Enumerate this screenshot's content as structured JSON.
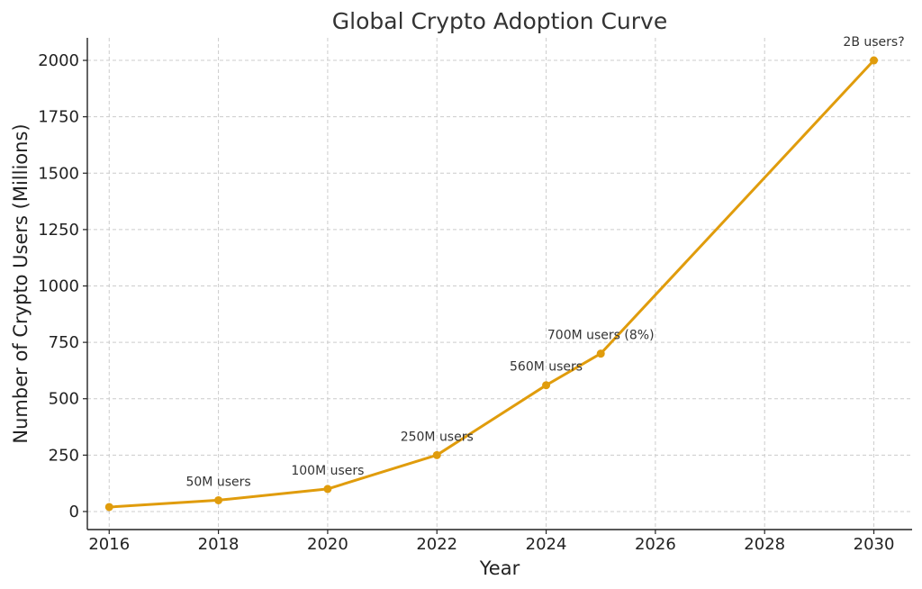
{
  "chart_data": {
    "type": "line",
    "title": "Global Crypto Adoption Curve",
    "xlabel": "Year",
    "ylabel": "Number of Crypto Users (Millions)",
    "xlim": [
      2015.6,
      2030.7
    ],
    "ylim": [
      -80,
      2100
    ],
    "xticks": [
      2016,
      2018,
      2020,
      2022,
      2024,
      2026,
      2028,
      2030
    ],
    "yticks": [
      0,
      250,
      500,
      750,
      1000,
      1250,
      1500,
      1750,
      2000
    ],
    "grid": true,
    "series": [
      {
        "color": "#e09c0c",
        "x": [
          2016,
          2018,
          2020,
          2022,
          2024,
          2025,
          2030
        ],
        "y": [
          20,
          50,
          100,
          250,
          560,
          700,
          2000
        ]
      }
    ],
    "annotations": [
      {
        "text": "50M users",
        "x": 2018,
        "y": 50
      },
      {
        "text": "100M users",
        "x": 2020,
        "y": 100
      },
      {
        "text": "250M users",
        "x": 2022,
        "y": 250
      },
      {
        "text": "560M users",
        "x": 2024,
        "y": 560
      },
      {
        "text": "700M users (8%)",
        "x": 2025,
        "y": 700
      },
      {
        "text": "2B users?",
        "x": 2030,
        "y": 2000
      }
    ]
  }
}
